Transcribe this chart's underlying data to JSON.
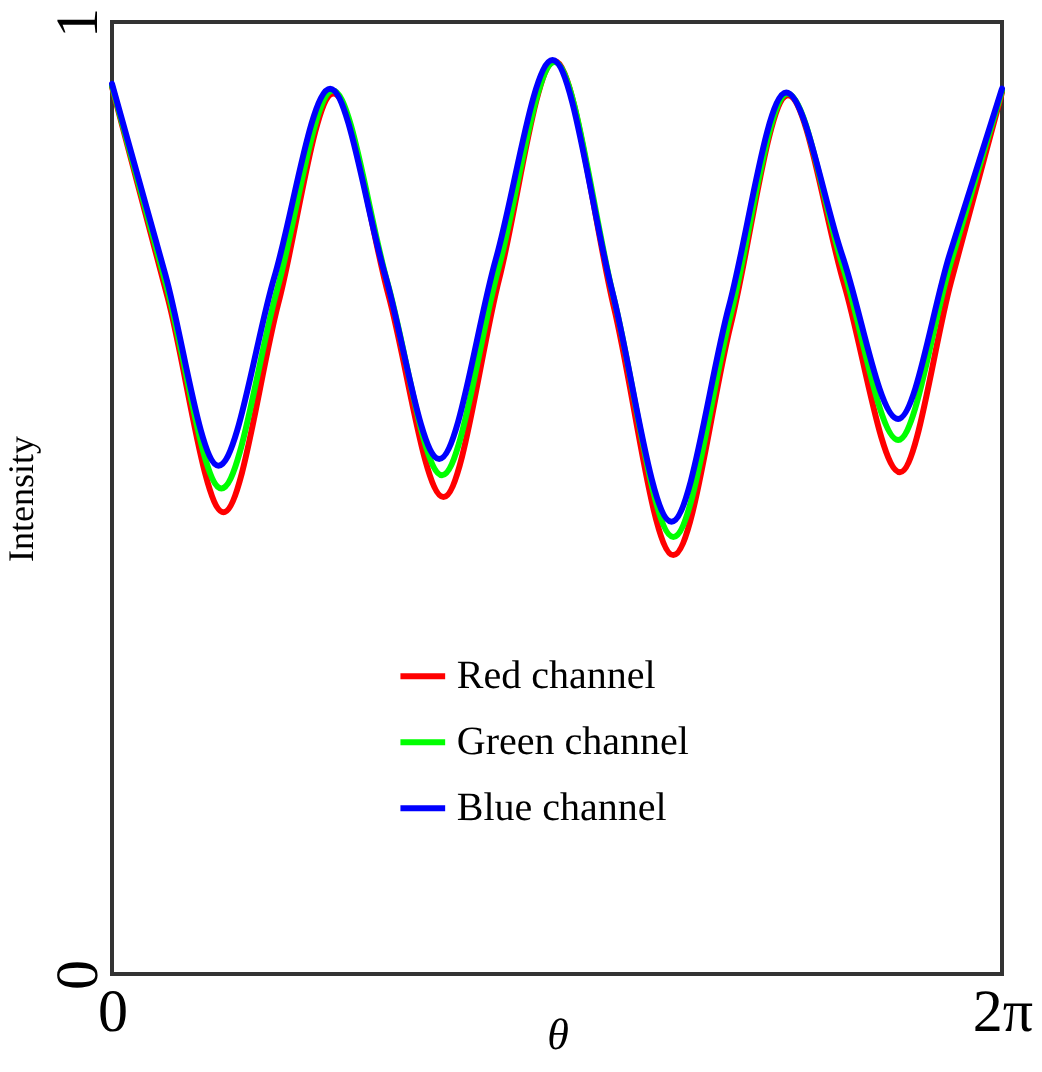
{
  "chart_data": {
    "type": "line",
    "xlabel": "θ",
    "ylabel": "Intensity",
    "xlim": [
      0,
      6.2832
    ],
    "ylim": [
      0,
      1
    ],
    "xticks": [
      0,
      {
        "value": 6.2832,
        "label": "2π"
      }
    ],
    "yticks": [
      0,
      1
    ],
    "legend": "bottom",
    "grid": false,
    "line_style": "solid",
    "marker": "none",
    "series": [
      {
        "name": "Red channel",
        "color": "#ff0000",
        "x": [
          0,
          0.394,
          0.787,
          1.175,
          1.563,
          1.952,
          2.34,
          2.733,
          3.125,
          3.544,
          3.963,
          4.368,
          4.772,
          5.168,
          5.563,
          5.923,
          6.2832
        ],
        "values": [
          0.932,
          0.71,
          0.485,
          0.705,
          0.925,
          0.713,
          0.501,
          0.73,
          0.959,
          0.7,
          0.44,
          0.682,
          0.923,
          0.725,
          0.527,
          0.727,
          0.926
        ]
      },
      {
        "name": "Green channel",
        "color": "#00ff00",
        "x": [
          0,
          0.386,
          0.772,
          1.166,
          1.56,
          1.945,
          2.33,
          2.728,
          3.125,
          3.544,
          3.963,
          4.367,
          4.77,
          5.16,
          5.55,
          5.917,
          6.2832
        ],
        "values": [
          0.933,
          0.722,
          0.51,
          0.719,
          0.928,
          0.726,
          0.524,
          0.741,
          0.958,
          0.709,
          0.459,
          0.692,
          0.925,
          0.743,
          0.561,
          0.745,
          0.928
        ]
      },
      {
        "name": "Blue channel",
        "color": "#0000ff",
        "x": [
          0,
          0.376,
          0.752,
          1.146,
          1.54,
          1.925,
          2.31,
          2.71,
          3.11,
          3.53,
          3.95,
          4.355,
          4.76,
          5.155,
          5.55,
          5.916,
          6.2832
        ],
        "values": [
          0.935,
          0.735,
          0.534,
          0.732,
          0.93,
          0.736,
          0.541,
          0.751,
          0.96,
          0.718,
          0.475,
          0.701,
          0.926,
          0.755,
          0.583,
          0.757,
          0.93
        ]
      }
    ]
  }
}
